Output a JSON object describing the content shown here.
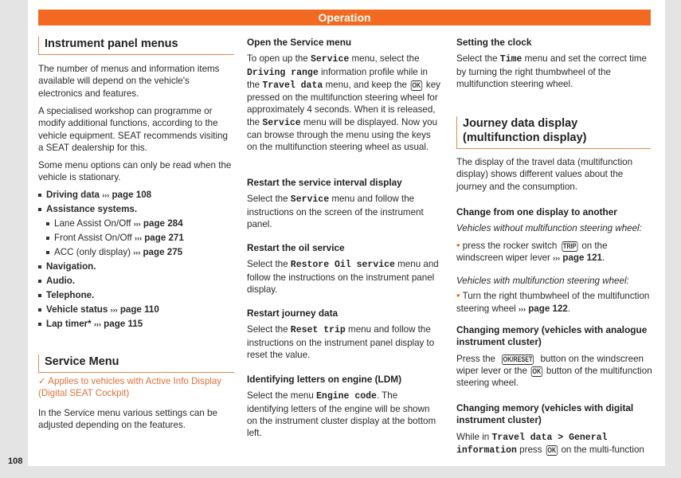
{
  "header": {
    "title": "Operation",
    "accent": "#f26a21"
  },
  "page_number": "108",
  "col1": {
    "heading1": "Instrument panel menus",
    "paras": [
      [
        {
          "t": "The number of menus and information items available will depend on the vehicle's electronics and features."
        }
      ],
      [
        {
          "t": "A specialised workshop can programme or modify additional functions, according to the vehicle equipment. SEAT recommends visiting a SEAT dealership for this."
        }
      ],
      [
        {
          "t": "Some menu options can only be read when the vehicle is stationary."
        }
      ]
    ],
    "list": [
      {
        "label": "Driving data",
        "ref": "page 108",
        "level": 1
      },
      {
        "label": "Assistance systems.",
        "ref": "",
        "level": 1
      },
      {
        "label": "Lane Assist On/Off",
        "ref": "page 284",
        "level": 2
      },
      {
        "label": "Front Assist On/Off",
        "ref": "page 271",
        "level": 2
      },
      {
        "label": "ACC (only display)",
        "ref": "page 275",
        "level": 2
      },
      {
        "label": "Navigation.",
        "ref": "",
        "level": 1
      },
      {
        "label": "Audio.",
        "ref": "",
        "level": 1
      },
      {
        "label": "Telephone.",
        "ref": "",
        "level": 1
      },
      {
        "label": "Vehicle status",
        "ref": "page 110",
        "level": 1
      },
      {
        "label": "Lap timer*",
        "ref": "page 115",
        "level": 1
      }
    ],
    "ref_arrow": "›››",
    "heading2": "Service Menu",
    "note": "✓ Applies to vehicles with Active Info Display (Digital SEAT Cockpit)",
    "service_para": [
      {
        "t": "In the Service menu various settings can be adjusted depending on the features."
      }
    ]
  },
  "col2": {
    "sections": [
      {
        "title": "Open the Service menu",
        "para": [
          {
            "t": "To open up the "
          },
          {
            "m": "Service"
          },
          {
            "t": " menu, select the "
          },
          {
            "m": "Driving range"
          },
          {
            "t": " information profile while in the "
          },
          {
            "m": "Travel data"
          },
          {
            "t": " menu, and keep the "
          },
          {
            "k": "OK"
          },
          {
            "t": " key pressed on the multifunction steering wheel for approximately 4 seconds. When it is released, the "
          },
          {
            "m": "Service"
          },
          {
            "t": " menu will be displayed. Now you can browse through the menu using the keys on the multifunction steering wheel as usual."
          }
        ]
      },
      {
        "title": "Restart the service interval display",
        "para": [
          {
            "t": "Select the "
          },
          {
            "m": "Service"
          },
          {
            "t": " menu and follow the instructions on the screen of the instrument panel."
          }
        ]
      },
      {
        "title": "Restart the oil service",
        "para": [
          {
            "t": "Select the "
          },
          {
            "m": "Restore Oil service"
          },
          {
            "t": " menu and follow the instructions on the instrument panel display."
          }
        ]
      },
      {
        "title": "Restart journey data",
        "para": [
          {
            "t": "Select the "
          },
          {
            "m": "Reset trip"
          },
          {
            "t": " menu and follow the instructions on the instrument panel display to reset the value."
          }
        ]
      },
      {
        "title": "Identifying letters on engine (LDM)",
        "para": [
          {
            "t": "Select the menu "
          },
          {
            "m": "Engine code"
          },
          {
            "t": ". The identifying letters of the engine will be shown on the instrument cluster display at the bottom left."
          }
        ]
      }
    ]
  },
  "col3": {
    "clock_title": "Setting the clock",
    "clock_para": [
      {
        "t": "Select the "
      },
      {
        "m": "Time"
      },
      {
        "t": " menu and set the correct time by turning the right thumbwheel of the multifunction steering wheel."
      }
    ],
    "heading": "Journey data display (multifunction display)",
    "intro": [
      {
        "t": "The display of the travel data (multifunction display) shows different values about the journey and the consumption."
      }
    ],
    "change_title": "Change from one display to another",
    "without_label": "Vehicles without multifunction steering wheel:",
    "without_bullet": [
      {
        "t": "press the rocker switch "
      },
      {
        "k": "TRIP"
      },
      {
        "t": " on the windscreen wiper lever "
      },
      {
        "r": "page 121"
      },
      {
        "t": "."
      }
    ],
    "with_label": "Vehicles with multifunction steering wheel:",
    "with_bullet": [
      {
        "t": "Turn the right thumbwheel of the multifunction steering wheel "
      },
      {
        "r": "page 122"
      },
      {
        "t": "."
      }
    ],
    "analogue_title": "Changing memory (vehicles with analogue instrument cluster)",
    "analogue_para": [
      {
        "t": "Press the "
      },
      {
        "k": "OK/RESET"
      },
      {
        "t": " button on the windscreen wiper lever or the "
      },
      {
        "k": "OK"
      },
      {
        "t": " button of the multifunction steering wheel."
      }
    ],
    "digital_title": "Changing memory (vehicles with digital instrument cluster)",
    "digital_para": [
      {
        "t": "While in "
      },
      {
        "m": "Travel data > General information"
      },
      {
        "t": " press "
      },
      {
        "k": "OK"
      },
      {
        "t": " on the multi-function"
      }
    ]
  }
}
